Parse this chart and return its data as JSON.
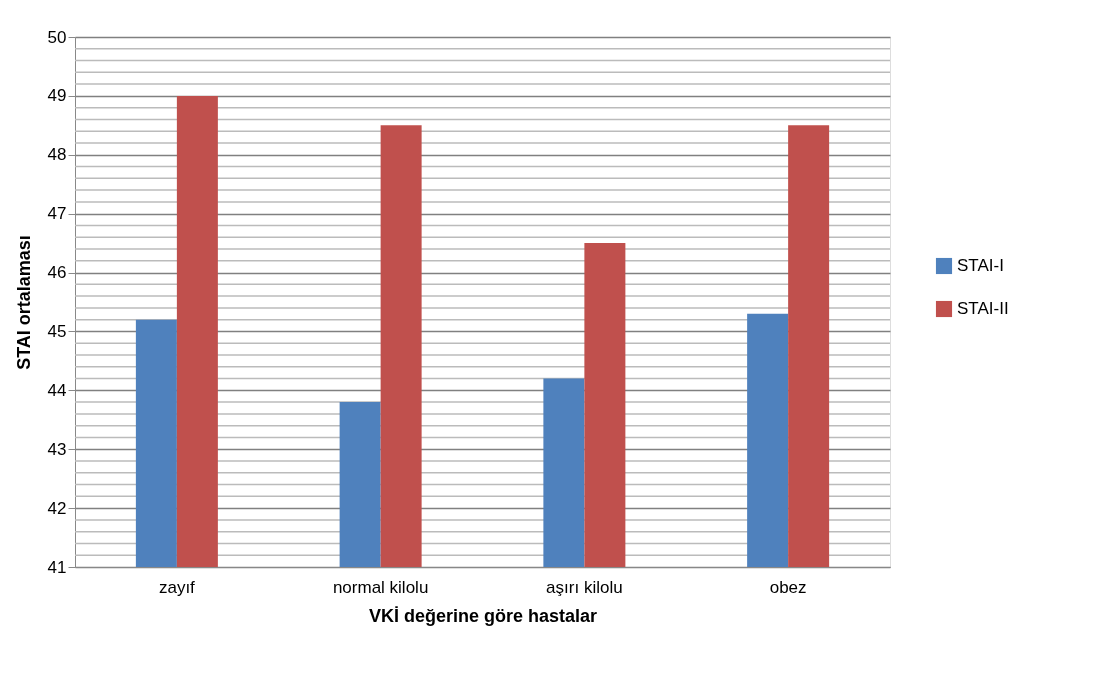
{
  "chart_data": {
    "type": "bar",
    "xlabel": "VKİ değerine göre hastalar",
    "ylabel": "STAI ortalaması",
    "categories": [
      "zayıf",
      "normal kilolu",
      "aşırı kilolu",
      "obez"
    ],
    "series": [
      {
        "name": "STAI-I",
        "color": "#4f81bd",
        "values": [
          45.2,
          43.8,
          44.2,
          45.3
        ]
      },
      {
        "name": "STAI-II",
        "color": "#c0504d",
        "values": [
          49.0,
          48.5,
          46.5,
          48.5
        ]
      }
    ],
    "ylim": [
      41,
      50
    ],
    "yticks": [
      41,
      42,
      43,
      44,
      45,
      46,
      47,
      48,
      49,
      50
    ],
    "grid": "y",
    "legend": "right"
  }
}
